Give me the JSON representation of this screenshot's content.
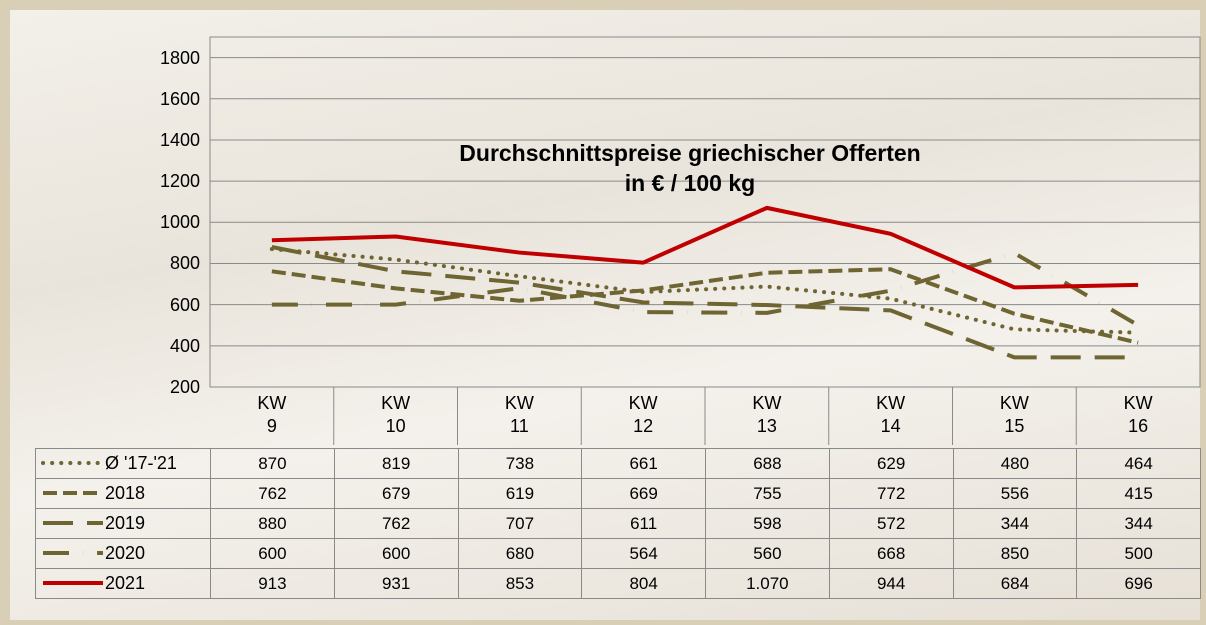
{
  "chart_data": {
    "type": "line",
    "title": "Durchschnittspreise griechischer Offerten\nin € / 100 kg",
    "categories": [
      "KW\n9",
      "KW\n10",
      "KW\n11",
      "KW\n12",
      "KW\n13",
      "KW\n14",
      "KW\n15",
      "KW\n16"
    ],
    "series": [
      {
        "name": "Ø '17-'21",
        "color": "#6e6532",
        "dash": "dotted",
        "values": [
          870,
          819,
          738,
          661,
          688,
          629,
          480,
          464
        ]
      },
      {
        "name": "2018",
        "color": "#6e6532",
        "dash": "dashed",
        "values": [
          762,
          679,
          619,
          669,
          755,
          772,
          556,
          415
        ]
      },
      {
        "name": "2019",
        "color": "#6e6532",
        "dash": "long-dash",
        "values": [
          880,
          762,
          707,
          611,
          598,
          572,
          344,
          344
        ]
      },
      {
        "name": "2020",
        "color": "#6e6532",
        "dash": "dash-dot",
        "values": [
          600,
          600,
          680,
          564,
          560,
          668,
          850,
          500
        ]
      },
      {
        "name": "2021",
        "color": "#c00000",
        "dash": "solid",
        "values": [
          913,
          931,
          853,
          804,
          1070,
          944,
          684,
          696
        ],
        "value_labels": [
          "913",
          "931",
          "853",
          "804",
          "1.070",
          "944",
          "684",
          "696"
        ]
      }
    ],
    "ylim": [
      200,
      1900
    ],
    "yticks": [
      200,
      400,
      600,
      800,
      1000,
      1200,
      1400,
      1600,
      1800
    ],
    "grid": true
  }
}
